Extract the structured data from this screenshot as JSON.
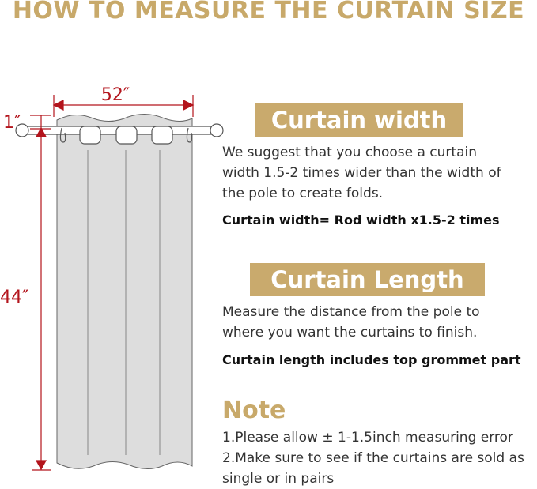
{
  "title": "HOW TO MEASURE THE CURTAIN SIZE",
  "diagram": {
    "width_label": "52″",
    "length_label": "44″",
    "top_label": "1″",
    "dimension_color": "#b3141c"
  },
  "width_section": {
    "heading": "Curtain width",
    "text": "We suggest that you choose a curtain width 1.5-2 times wider than the width of the pole to create folds.",
    "formula": "Curtain width= Rod width x1.5-2 times"
  },
  "length_section": {
    "heading": "Curtain Length",
    "text": "Measure the distance from the pole to where you want the curtains to finish.",
    "formula": "Curtain length includes top grommet part"
  },
  "note": {
    "heading": "Note",
    "items": [
      "1.Please allow ± 1-1.5inch measuring error",
      "2.Make sure to see if the curtains are sold as single or in pairs"
    ]
  },
  "colors": {
    "gold": "#c9aa6d",
    "curtain": "#dddddd"
  }
}
